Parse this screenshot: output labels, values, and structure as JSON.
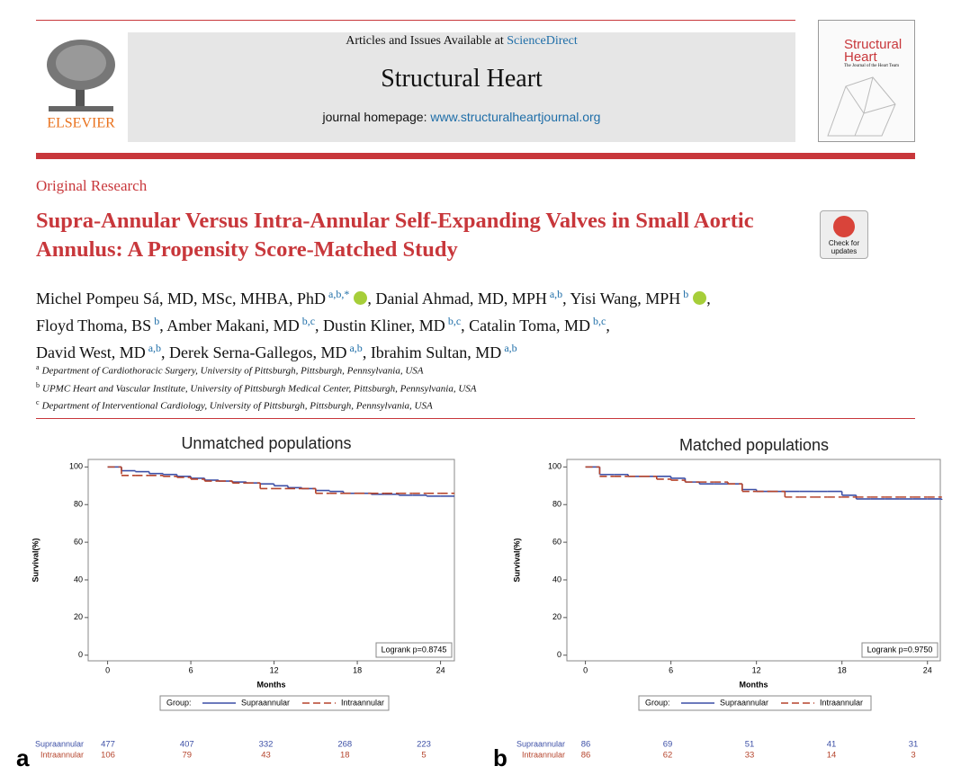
{
  "header": {
    "availability": "Articles and Issues Available at",
    "sciencedirect": "ScienceDirect",
    "journal": "Structural Heart",
    "homepage_label": "journal homepage:",
    "homepage_url": "www.structuralheartjournal.org",
    "publisher": "ELSEVIER",
    "cover_title": "Structural Heart",
    "cover_subtitle": "The Journal of the Heart Team"
  },
  "check_updates": "Check for updates",
  "article": {
    "type": "Original Research",
    "title": "Supra-Annular Versus Intra-Annular Self-Expanding Valves in Small Aortic Annulus: A Propensity Score-Matched Study",
    "authors": [
      [
        {
          "name": "Michel Pompeu Sá, MD, MSc, MHBA, PhD",
          "sup": "a,b,*",
          "orcid": true
        },
        {
          "name": "Danial Ahmad, MD, MPH",
          "sup": "a,b"
        },
        {
          "name": "Yisi Wang, MPH",
          "sup": "b",
          "orcid": true
        }
      ],
      [
        {
          "name": "Floyd Thoma, BS",
          "sup": "b"
        },
        {
          "name": "Amber Makani, MD",
          "sup": "b,c"
        },
        {
          "name": "Dustin Kliner, MD",
          "sup": "b,c"
        },
        {
          "name": "Catalin Toma, MD",
          "sup": "b,c"
        }
      ],
      [
        {
          "name": "David West, MD",
          "sup": "a,b"
        },
        {
          "name": "Derek Serna-Gallegos, MD",
          "sup": "a,b"
        },
        {
          "name": "Ibrahim Sultan, MD",
          "sup": "a,b"
        }
      ]
    ],
    "affiliations": [
      {
        "key": "a",
        "text": "Department of Cardiothoracic Surgery, University of Pittsburgh, Pittsburgh, Pennsylvania, USA"
      },
      {
        "key": "b",
        "text": "UPMC Heart and Vascular Institute, University of Pittsburgh Medical Center, Pittsburgh, Pennsylvania, USA"
      },
      {
        "key": "c",
        "text": "Department of Interventional Cardiology, University of Pittsburgh, Pittsburgh, Pennsylvania, USA"
      }
    ]
  },
  "chart_data": [
    {
      "type": "line",
      "step": true,
      "panel": "a",
      "title": "Unmatched populations",
      "xlabel": "Months",
      "ylabel": "Survival(%)",
      "annotation": "Logrank p=0.8745",
      "legend": "bottom",
      "legend_title": "Group:",
      "xlim": [
        -1.4,
        25
      ],
      "ylim": [
        -3,
        104
      ],
      "xticks": [
        0,
        6,
        12,
        18,
        24
      ],
      "yticks": [
        0,
        20,
        40,
        60,
        80,
        100
      ],
      "grid": false,
      "x": [
        0,
        1,
        2,
        3,
        4,
        5,
        6,
        7,
        8,
        9,
        10,
        11,
        12,
        13,
        14,
        15,
        16,
        17,
        18,
        19,
        20,
        21,
        22,
        23,
        24,
        25
      ],
      "series": [
        {
          "name": "Supraannular",
          "color": "#3c4fa6",
          "line_style": "solid",
          "values": [
            100,
            98,
            97.5,
            96.5,
            96,
            95,
            94,
            93,
            92.5,
            92,
            91.5,
            91,
            90,
            89,
            88.5,
            87.5,
            87,
            86,
            86,
            85.5,
            85.5,
            85,
            85,
            84.5,
            84.5,
            84.5
          ]
        },
        {
          "name": "Intraannular",
          "color": "#b5442c",
          "line_style": "dashed",
          "values": [
            100,
            95.5,
            95.5,
            95.5,
            95,
            94.5,
            93.5,
            92.5,
            92.5,
            91.5,
            91.5,
            88.5,
            88.5,
            88.5,
            88.5,
            86,
            86,
            86,
            86,
            86,
            86,
            86,
            86,
            86,
            86,
            86
          ]
        }
      ],
      "risk_table": [
        {
          "name": "Supraannular",
          "values": [
            477,
            407,
            332,
            268,
            223
          ]
        },
        {
          "name": "Intraannular",
          "values": [
            106,
            79,
            43,
            18,
            5
          ]
        }
      ]
    },
    {
      "type": "line",
      "step": true,
      "panel": "b",
      "title": "Matched populations",
      "xlabel": "Months",
      "ylabel": "Survival(%)",
      "annotation": "Logrank p=0.9750",
      "legend": "bottom",
      "legend_title": "Group:",
      "xlim": [
        -1.3,
        24.9
      ],
      "ylim": [
        -3,
        104
      ],
      "xticks": [
        0,
        6,
        12,
        18,
        24
      ],
      "yticks": [
        0,
        20,
        40,
        60,
        80,
        100
      ],
      "grid": false,
      "x": [
        0,
        1,
        2,
        3,
        4,
        5,
        6,
        7,
        8,
        9,
        10,
        11,
        12,
        13,
        14,
        15,
        16,
        17,
        18,
        19,
        20,
        21,
        22,
        23,
        24,
        25
      ],
      "series": [
        {
          "name": "Supraannular",
          "color": "#3c4fa6",
          "line_style": "solid",
          "values": [
            100,
            96,
            96,
            95,
            95,
            95,
            94,
            92,
            91,
            91,
            91,
            88,
            87,
            87,
            87,
            87,
            87,
            87,
            85,
            83,
            83,
            83,
            83,
            83,
            83,
            82.5
          ]
        },
        {
          "name": "Intraannular",
          "color": "#b5442c",
          "line_style": "dashed",
          "values": [
            100,
            95,
            95,
            95,
            95,
            93.5,
            93,
            92,
            92,
            92,
            91,
            87,
            87,
            87,
            84,
            84,
            84,
            84,
            84,
            84,
            84,
            84,
            84,
            84,
            84,
            84
          ]
        }
      ],
      "risk_table": [
        {
          "name": "Supraannular",
          "values": [
            86,
            69,
            51,
            41,
            31
          ]
        },
        {
          "name": "Intraannular",
          "values": [
            86,
            62,
            33,
            14,
            3
          ]
        }
      ]
    }
  ]
}
